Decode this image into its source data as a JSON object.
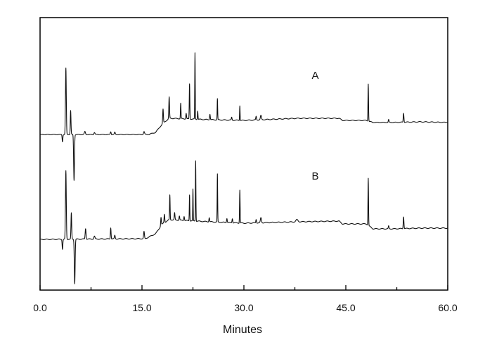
{
  "chart_data": {
    "type": "line",
    "title": "",
    "xlabel": "Minutes",
    "ylabel": "",
    "xlim": [
      0,
      60
    ],
    "ylim": [
      0,
      387
    ],
    "x_ticks": [
      "0.0",
      "15.0",
      "30.0",
      "45.0",
      "60.0"
    ],
    "x_tick_values": [
      0,
      15,
      30,
      45,
      60
    ],
    "x_minor_tick_values": [
      7.5,
      22.5,
      37.5,
      52.5
    ],
    "grid": false,
    "legend": "none",
    "series": [
      {
        "name": "A",
        "label_at": [
          40.5,
          300
        ],
        "baseline": [
          [
            0,
            221
          ],
          [
            16,
            221
          ],
          [
            17,
            224
          ],
          [
            18,
            236
          ],
          [
            19,
            244
          ],
          [
            25,
            242
          ],
          [
            30,
            241
          ],
          [
            38,
            244
          ],
          [
            44,
            244
          ],
          [
            44.5,
            241
          ],
          [
            48,
            241
          ],
          [
            49,
            238
          ],
          [
            52,
            238
          ],
          [
            56,
            239
          ],
          [
            60,
            238
          ]
        ],
        "peaks": [
          [
            3.3,
            -10,
            0.1
          ],
          [
            3.8,
            94,
            0.12
          ],
          [
            4.5,
            34,
            0.1
          ],
          [
            5.0,
            -65,
            0.12
          ],
          [
            6.6,
            4,
            0.15
          ],
          [
            8.0,
            3,
            0.15
          ],
          [
            10.4,
            4,
            0.12
          ],
          [
            11.0,
            3,
            0.12
          ],
          [
            15.3,
            4,
            0.15
          ],
          [
            18.1,
            20,
            0.1
          ],
          [
            19.0,
            30,
            0.1
          ],
          [
            20.7,
            22,
            0.08
          ],
          [
            21.5,
            8,
            0.1
          ],
          [
            22.0,
            50,
            0.08
          ],
          [
            22.8,
            94,
            0.07
          ],
          [
            23.2,
            12,
            0.08
          ],
          [
            25.0,
            8,
            0.1
          ],
          [
            26.1,
            30,
            0.07
          ],
          [
            28.2,
            4,
            0.1
          ],
          [
            29.4,
            21,
            0.07
          ],
          [
            31.8,
            5,
            0.1
          ],
          [
            32.5,
            6,
            0.15
          ],
          [
            48.3,
            53,
            0.08
          ],
          [
            51.3,
            4,
            0.1
          ],
          [
            53.5,
            13,
            0.1
          ]
        ]
      },
      {
        "name": "B",
        "label_at": [
          40.5,
          157
        ],
        "baseline": [
          [
            0,
            72
          ],
          [
            15.5,
            73
          ],
          [
            17,
            80
          ],
          [
            18,
            94
          ],
          [
            19,
            100
          ],
          [
            25,
            97
          ],
          [
            30,
            95
          ],
          [
            38,
            97
          ],
          [
            44,
            98
          ],
          [
            44.5,
            94
          ],
          [
            48,
            94
          ],
          [
            49,
            87
          ],
          [
            52,
            87
          ],
          [
            56,
            88
          ],
          [
            60,
            88
          ]
        ],
        "peaks": [
          [
            3.3,
            -14,
            0.1
          ],
          [
            3.8,
            97,
            0.12
          ],
          [
            4.6,
            37,
            0.1
          ],
          [
            5.1,
            -63,
            0.12
          ],
          [
            6.7,
            15,
            0.12
          ],
          [
            8.0,
            4,
            0.15
          ],
          [
            10.4,
            16,
            0.1
          ],
          [
            11.0,
            5,
            0.12
          ],
          [
            15.3,
            10,
            0.12
          ],
          [
            17.8,
            12,
            0.1
          ],
          [
            18.3,
            12,
            0.1
          ],
          [
            19.1,
            35,
            0.08
          ],
          [
            19.8,
            10,
            0.1
          ],
          [
            20.5,
            6,
            0.1
          ],
          [
            21.2,
            6,
            0.1
          ],
          [
            22.0,
            37,
            0.07
          ],
          [
            22.5,
            45,
            0.06
          ],
          [
            22.9,
            86,
            0.07
          ],
          [
            24.9,
            6,
            0.1
          ],
          [
            26.1,
            68,
            0.07
          ],
          [
            27.5,
            6,
            0.1
          ],
          [
            28.3,
            6,
            0.1
          ],
          [
            29.4,
            47,
            0.08
          ],
          [
            31.8,
            5,
            0.1
          ],
          [
            32.5,
            7,
            0.15
          ],
          [
            37.8,
            3,
            0.3
          ],
          [
            48.3,
            67,
            0.08
          ],
          [
            51.3,
            4,
            0.1
          ],
          [
            53.5,
            17,
            0.1
          ]
        ]
      }
    ]
  }
}
